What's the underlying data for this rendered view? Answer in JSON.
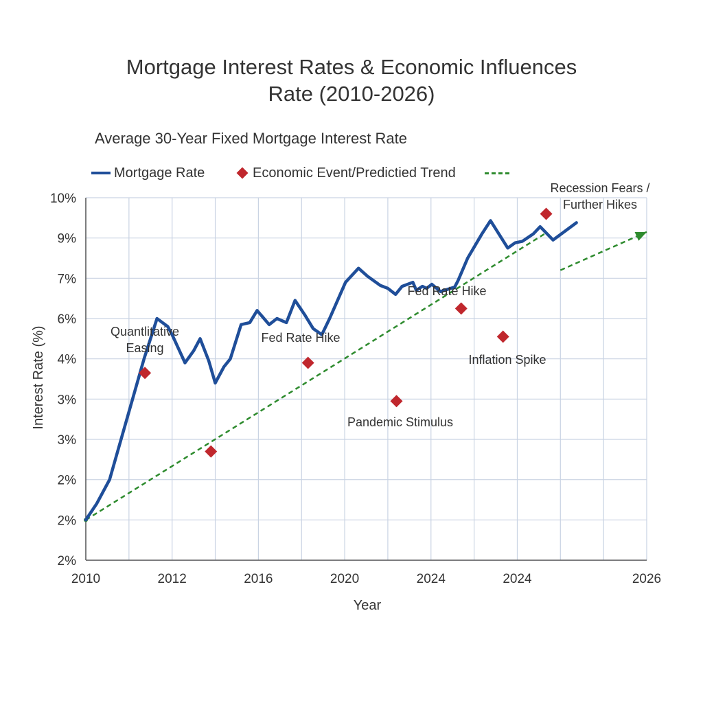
{
  "title_line1": "Mortgage Interest Rates & Economic Influences",
  "title_line2": "Rate (2010-2026)",
  "subtitle": "Average 30-Year Fixed Mortgage Interest Rate",
  "legend": {
    "line": "Mortgage Rate",
    "marker": "Economic Event/Predictied Trend"
  },
  "colors": {
    "line": "#1f4e99",
    "marker": "#c0272d",
    "trend": "#2e8b2e",
    "grid": "#c9d3e3"
  },
  "chart_data": {
    "type": "line",
    "xlabel": "Year",
    "ylabel": "Interest Rate (%)",
    "x_tick_labels": [
      "2010",
      "2012",
      "2016",
      "2020",
      "2024",
      "2024",
      "2026"
    ],
    "y_tick_labels": [
      "2%",
      "2%",
      "2%",
      "3%",
      "3%",
      "4%",
      "6%",
      "7%",
      "9%",
      "10%"
    ],
    "ylim_index": [
      0,
      9
    ],
    "xlim_index": [
      0,
      13
    ],
    "grid": true,
    "legend_position": "top-left",
    "series": [
      {
        "name": "Mortgage Rate",
        "points": [
          [
            0,
            1.0
          ],
          [
            0.25,
            1.4
          ],
          [
            0.55,
            2.0
          ],
          [
            0.95,
            3.5
          ],
          [
            1.35,
            5.0
          ],
          [
            1.65,
            6.0
          ],
          [
            1.9,
            5.8
          ],
          [
            2.0,
            5.6
          ],
          [
            2.3,
            4.9
          ],
          [
            2.5,
            5.2
          ],
          [
            2.65,
            5.5
          ],
          [
            2.85,
            4.95
          ],
          [
            3.0,
            4.4
          ],
          [
            3.2,
            4.8
          ],
          [
            3.35,
            5.0
          ],
          [
            3.6,
            5.85
          ],
          [
            3.8,
            5.9
          ],
          [
            3.97,
            6.2
          ],
          [
            4.25,
            5.85
          ],
          [
            4.43,
            6.0
          ],
          [
            4.65,
            5.9
          ],
          [
            4.85,
            6.45
          ],
          [
            5.07,
            6.1
          ],
          [
            5.27,
            5.75
          ],
          [
            5.47,
            5.6
          ],
          [
            5.65,
            6.0
          ],
          [
            6.02,
            6.9
          ],
          [
            6.32,
            7.25
          ],
          [
            6.53,
            7.05
          ],
          [
            6.83,
            6.82
          ],
          [
            7.0,
            6.75
          ],
          [
            7.18,
            6.6
          ],
          [
            7.33,
            6.8
          ],
          [
            7.58,
            6.9
          ],
          [
            7.66,
            6.7
          ],
          [
            7.8,
            6.8
          ],
          [
            7.9,
            6.75
          ],
          [
            8.02,
            6.85
          ],
          [
            8.22,
            6.67
          ],
          [
            8.55,
            6.78
          ],
          [
            8.63,
            6.95
          ],
          [
            8.85,
            7.5
          ],
          [
            9.18,
            8.1
          ],
          [
            9.38,
            8.43
          ],
          [
            9.78,
            7.75
          ],
          [
            9.95,
            7.88
          ],
          [
            10.12,
            7.92
          ],
          [
            10.37,
            8.1
          ],
          [
            10.53,
            8.28
          ],
          [
            10.83,
            7.95
          ],
          [
            11.37,
            8.38
          ]
        ]
      }
    ],
    "events": [
      {
        "x": 1.37,
        "y": 4.65,
        "label_lines": [
          "Quantlitative",
          "Easing"
        ]
      },
      {
        "x": 2.9,
        "y": 2.7,
        "label_lines": []
      },
      {
        "x": 5.15,
        "y": 4.9,
        "label_lines": [
          "Fed Rate Hike"
        ]
      },
      {
        "x": 7.2,
        "y": 3.95,
        "label_lines": [
          "Pandemic Stimulus"
        ]
      },
      {
        "x": 8.7,
        "y": 6.25,
        "label_lines": [
          "Fed Rate Hike"
        ]
      },
      {
        "x": 9.67,
        "y": 5.55,
        "label_lines": [
          "Inflation Spike"
        ]
      },
      {
        "x": 10.67,
        "y": 8.6,
        "label_lines": [
          "Recession Fears /",
          "Further Hikes"
        ]
      }
    ],
    "trend": {
      "name": "Predicted Trend",
      "segments": [
        [
          [
            0,
            1.0
          ],
          [
            10.63,
            8.1
          ]
        ],
        [
          [
            11.0,
            7.2
          ],
          [
            13.0,
            8.15
          ]
        ]
      ]
    }
  }
}
